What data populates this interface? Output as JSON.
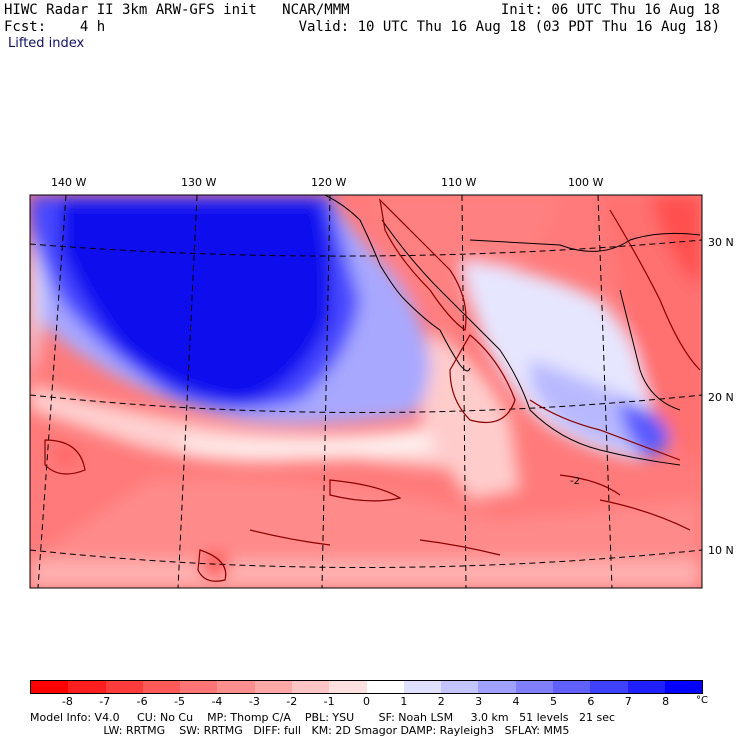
{
  "header": {
    "line1": "HIWC Radar II 3km ARW-GFS init   NCAR/MMM",
    "line2": "Fcst:    4 h",
    "field": "Lifted index",
    "init": "Init: 06 UTC Thu 16 Aug 18",
    "valid": "Valid: 10 UTC Thu 16 Aug 18 (03 PDT Thu 16 Aug 18)"
  },
  "map": {
    "lon_labels": [
      "140 W",
      "130 W",
      "120 W",
      "110 W",
      "100 W"
    ],
    "lat_labels": [
      "30 N",
      "20 N",
      "10 N"
    ],
    "contour_label": "-2"
  },
  "colorbar": {
    "tick_labels": [
      "-8",
      "-7",
      "-6",
      "-5",
      "-4",
      "-3",
      "-2",
      "-1",
      "0",
      "1",
      "2",
      "3",
      "4",
      "5",
      "6",
      "7",
      "8"
    ],
    "unit": "°C",
    "colors": [
      "#ff0000",
      "#ff1e1e",
      "#ff3c3c",
      "#ff5a5a",
      "#ff7474",
      "#ff8e8e",
      "#ffa8a8",
      "#ffc4c4",
      "#ffe0e0",
      "#ffffff",
      "#e0e0ff",
      "#c4c4ff",
      "#a0a0ff",
      "#8080ff",
      "#6060ff",
      "#4040ff",
      "#2020ff",
      "#0000ff"
    ]
  },
  "footer": {
    "line1": "Model Info: V4.0     CU: No Cu    MP: Thomp C/A    PBL: YSU       SF: Noah LSM     3.0 km   51 levels   21 sec",
    "line2": "                     LW: RRTMG    SW: RRTMG   DIFF: full   KM: 2D Smagor DAMP: Rayleigh3   SFLAY: MM5"
  }
}
